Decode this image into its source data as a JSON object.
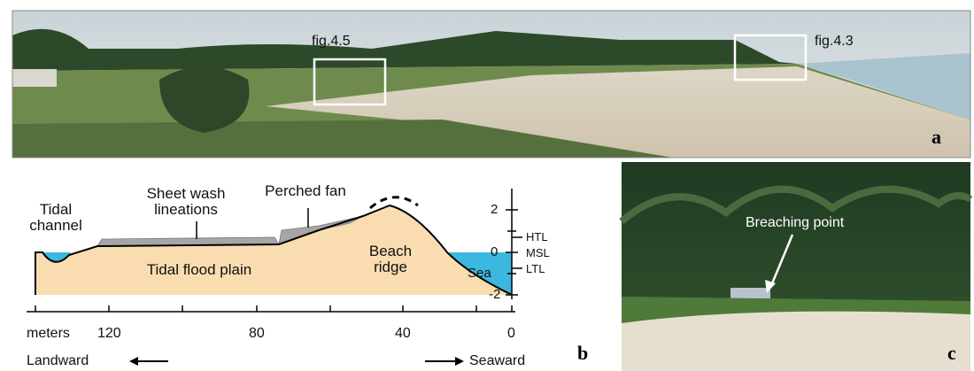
{
  "panel_a": {
    "label": "a",
    "boxes": [
      "fig.4.5",
      "fig.4.3"
    ]
  },
  "panel_b": {
    "label": "b",
    "annotations": {
      "tidal_channel": "Tidal channel",
      "sheet_wash": "Sheet wash lineations",
      "perched_fan": "Perched fan",
      "beach_ridge": "Beach ridge",
      "flood_plain": "Tidal flood plain",
      "sea": "Sea"
    },
    "x_axis": {
      "unit": "meters",
      "ticks": [
        120,
        80,
        40,
        0
      ]
    },
    "y_axis": {
      "ticks": [
        2,
        0,
        -2
      ],
      "levels": [
        "HTL",
        "MSL",
        "LTL"
      ]
    },
    "directions": {
      "landward": "Landward",
      "seaward": "Seaward"
    }
  },
  "panel_c": {
    "label": "c",
    "annotation": "Breaching point"
  }
}
